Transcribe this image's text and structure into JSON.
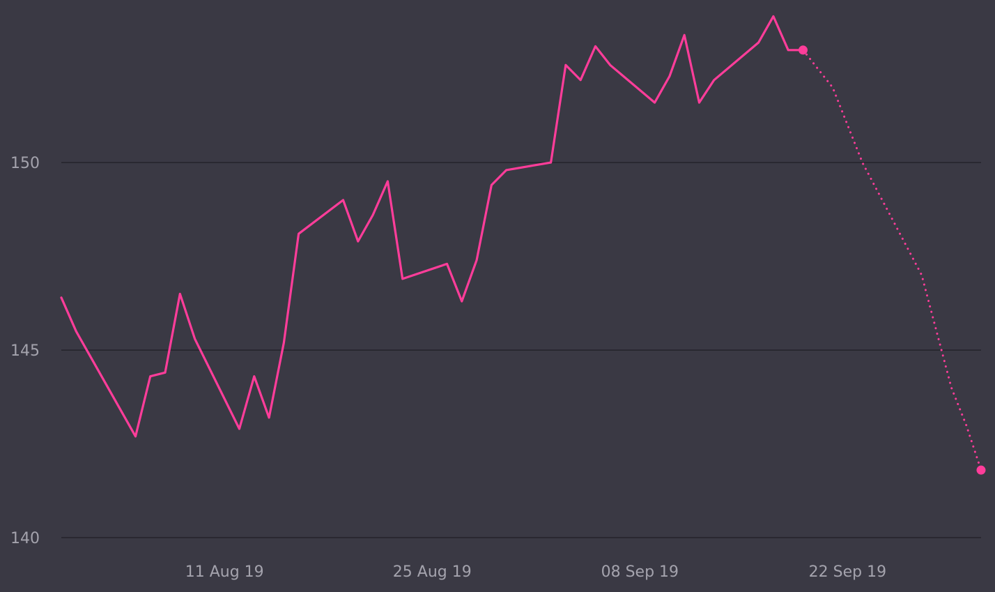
{
  "chart_data": {
    "type": "line",
    "title": "",
    "xlabel": "",
    "ylabel": "",
    "grid": true,
    "line_color": "#ff3d9a",
    "background_color": "#3a3944",
    "grid_color": "#24232b",
    "label_color": "#a4a3ad",
    "x_range": [
      "2019-07-31",
      "2019-10-01"
    ],
    "ylim": [
      140,
      154
    ],
    "y_ticks": [
      140,
      145,
      150
    ],
    "y_tick_labels": [
      "140",
      "145",
      "150"
    ],
    "x_ticks": [
      "2019-08-11",
      "2019-08-25",
      "2019-09-08",
      "2019-09-22"
    ],
    "x_tick_labels": [
      "11 Aug 19",
      "25 Aug 19",
      "08 Sep 19",
      "22 Sep 19"
    ],
    "series": [
      {
        "style": "solid",
        "x": [
          "2019-07-31",
          "2019-08-01",
          "2019-08-02",
          "2019-08-05",
          "2019-08-06",
          "2019-08-07",
          "2019-08-08",
          "2019-08-09",
          "2019-08-12",
          "2019-08-13",
          "2019-08-14",
          "2019-08-15",
          "2019-08-16",
          "2019-08-19",
          "2019-08-20",
          "2019-08-21",
          "2019-08-22",
          "2019-08-23",
          "2019-08-26",
          "2019-08-27",
          "2019-08-28",
          "2019-08-29",
          "2019-08-30",
          "2019-09-02",
          "2019-09-03",
          "2019-09-04",
          "2019-09-05",
          "2019-09-06",
          "2019-09-09",
          "2019-09-10",
          "2019-09-11",
          "2019-09-12",
          "2019-09-13",
          "2019-09-16",
          "2019-09-17",
          "2019-09-18",
          "2019-09-19"
        ],
        "values": [
          146.4,
          145.5,
          144.8,
          142.7,
          144.3,
          144.4,
          146.5,
          145.3,
          142.9,
          144.3,
          143.2,
          145.2,
          148.1,
          149.0,
          147.9,
          148.6,
          149.5,
          146.9,
          147.3,
          146.3,
          147.4,
          149.4,
          149.8,
          150.0,
          152.6,
          152.2,
          153.1,
          152.6,
          151.6,
          152.3,
          153.4,
          151.6,
          152.2,
          153.2,
          153.9,
          153.0,
          153.0
        ],
        "end_marker": true
      },
      {
        "style": "dotted",
        "x": [
          "2019-09-19",
          "2019-09-21",
          "2019-09-23",
          "2019-09-25",
          "2019-09-27",
          "2019-09-28",
          "2019-09-29",
          "2019-09-30",
          "2019-10-01"
        ],
        "values": [
          153.0,
          152.0,
          150.0,
          148.5,
          147.0,
          145.5,
          144.0,
          143.0,
          141.8
        ],
        "end_marker": true
      }
    ]
  }
}
